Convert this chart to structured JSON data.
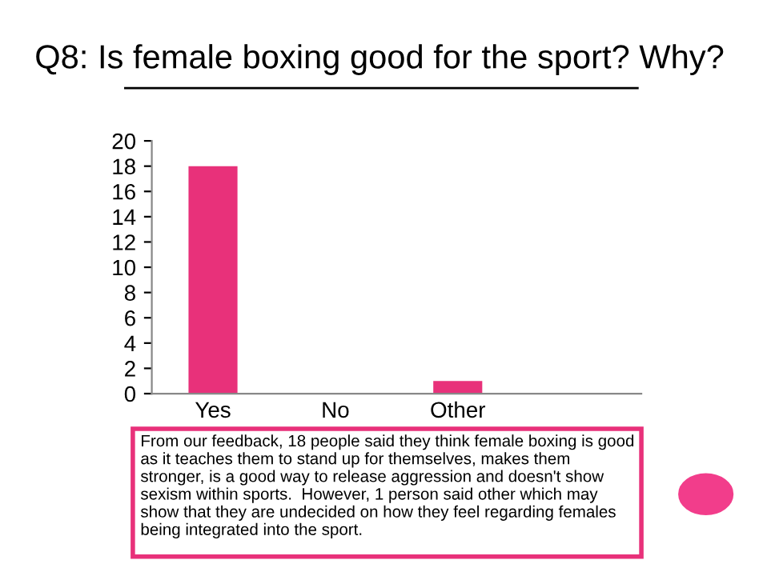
{
  "chart_data": {
    "type": "bar",
    "title": "Q8: Is female boxing good for the sport? Why?",
    "categories": [
      "Yes",
      "No",
      "Other",
      null
    ],
    "values": [
      18,
      0,
      1,
      null
    ],
    "color": "#e8317a",
    "ylim": [
      0,
      20
    ],
    "yticks": [
      0,
      2,
      4,
      6,
      8,
      10,
      12,
      14,
      16,
      18,
      20
    ],
    "grid": false,
    "legend": false,
    "annotations": [
      "From our feedback, 18 people said they think female boxing is good as it teaches them to stand up for themselves, makes them stronger, is a good way to release aggression and doesn't show sexism within sports.  However, 1 person said other which may show that they are undecided on how they feel regarding females being integrated into the sport."
    ]
  }
}
